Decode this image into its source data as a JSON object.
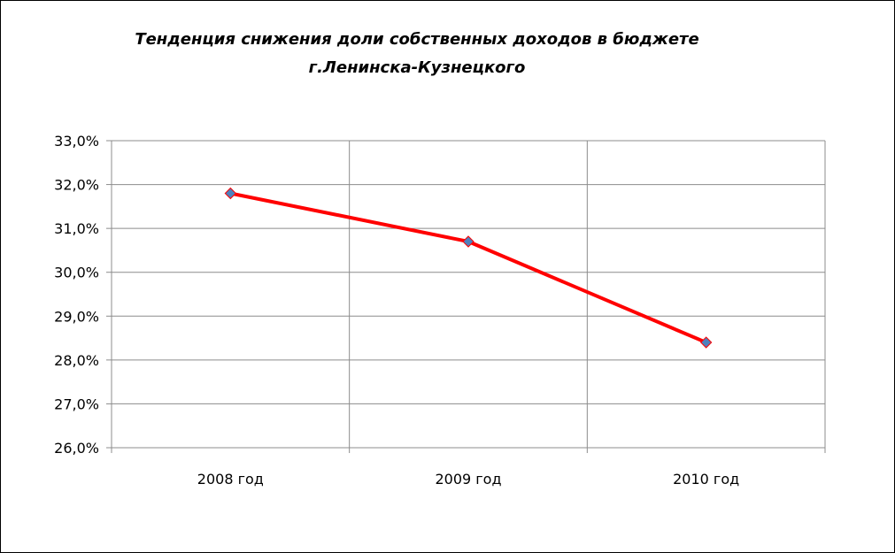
{
  "chart_data": {
    "type": "line",
    "title": "Тенденция снижения доли собственных доходов в бюджете г.Ленинска-Кузнецкого",
    "title_lines": [
      "Тенденция снижения доли собственных доходов в бюджете",
      "г.Ленинска-Кузнецкого"
    ],
    "categories": [
      "2008 год",
      "2009 год",
      "2010 год"
    ],
    "series": [
      {
        "values": [
          31.8,
          30.7,
          28.4
        ],
        "color": "#ff0000",
        "marker": "diamond",
        "marker_color": "#4f81bd"
      }
    ],
    "ylim": [
      26,
      33
    ],
    "y_ticks": [
      "26,0%",
      "27,0%",
      "28,0%",
      "29,0%",
      "30,0%",
      "31,0%",
      "32,0%",
      "33,0%"
    ],
    "y_tick_values": [
      26,
      27,
      28,
      29,
      30,
      31,
      32,
      33
    ],
    "xlabel": "",
    "ylabel": "",
    "grid": true,
    "legend": "none"
  }
}
